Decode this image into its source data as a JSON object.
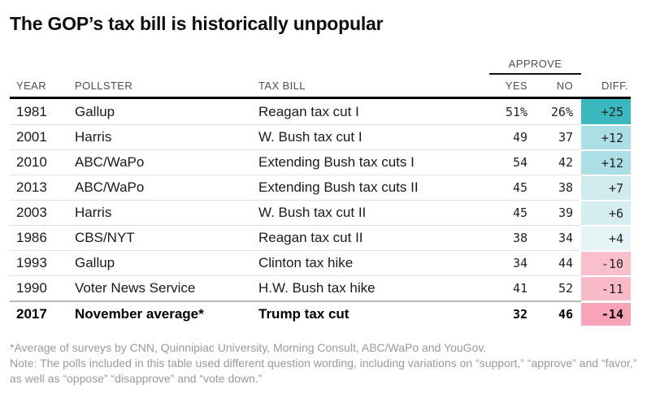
{
  "chart_data": {
    "type": "table",
    "title": "The GOP’s tax bill is historically unpopular",
    "column_group": "APPROVE",
    "columns": [
      "YEAR",
      "POLLSTER",
      "TAX BILL",
      "YES",
      "NO",
      "DIFF."
    ],
    "rows": [
      {
        "year": "1981",
        "pollster": "Gallup",
        "tax_bill": "Reagan tax cut I",
        "yes": "51%",
        "no": "26%",
        "diff": "+25",
        "diff_value": 25,
        "diff_color": "#3bb7c0",
        "bold": false
      },
      {
        "year": "2001",
        "pollster": "Harris",
        "tax_bill": "W. Bush tax cut I",
        "yes": "49",
        "no": "37",
        "diff": "+12",
        "diff_value": 12,
        "diff_color": "#abdfe5",
        "bold": false
      },
      {
        "year": "2010",
        "pollster": "ABC/WaPo",
        "tax_bill": "Extending Bush tax cuts I",
        "yes": "54",
        "no": "42",
        "diff": "+12",
        "diff_value": 12,
        "diff_color": "#abdfe5",
        "bold": false
      },
      {
        "year": "2013",
        "pollster": "ABC/WaPo",
        "tax_bill": "Extending Bush tax cuts II",
        "yes": "45",
        "no": "38",
        "diff": "+7",
        "diff_value": 7,
        "diff_color": "#d0ebee",
        "bold": false
      },
      {
        "year": "2003",
        "pollster": "Harris",
        "tax_bill": "W. Bush tax cut II",
        "yes": "45",
        "no": "39",
        "diff": "+6",
        "diff_value": 6,
        "diff_color": "#d7eef0",
        "bold": false
      },
      {
        "year": "1986",
        "pollster": "CBS/NYT",
        "tax_bill": "Reagan tax cut II",
        "yes": "38",
        "no": "34",
        "diff": "+4",
        "diff_value": 4,
        "diff_color": "#e5f4f5",
        "bold": false
      },
      {
        "year": "1993",
        "pollster": "Gallup",
        "tax_bill": "Clinton tax hike",
        "yes": "34",
        "no": "44",
        "diff": "-10",
        "diff_value": -10,
        "diff_color": "#f9bfcc",
        "bold": false
      },
      {
        "year": "1990",
        "pollster": "Voter News Service",
        "tax_bill": "H.W. Bush tax hike",
        "yes": "41",
        "no": "52",
        "diff": "-11",
        "diff_value": -11,
        "diff_color": "#f9bbc9",
        "bold": false
      },
      {
        "year": "2017",
        "pollster": "November average*",
        "tax_bill": "Trump tax cut",
        "yes": "32",
        "no": "46",
        "diff": "-14",
        "diff_value": -14,
        "diff_color": "#f8a3ba",
        "bold": true
      }
    ],
    "footnotes": [
      "*Average of surveys by CNN, Quinnipiac University, Morning Consult, ABC/WaPo and YouGov.",
      "Note: The polls included in this table used different question wording, including variations on “support,” “approve” and “favor,” as well as “oppose” “disapprove” and “vote down.”"
    ],
    "legend_colors": {
      "positive": "#3bb7c0",
      "negative": "#f8a3ba"
    }
  }
}
